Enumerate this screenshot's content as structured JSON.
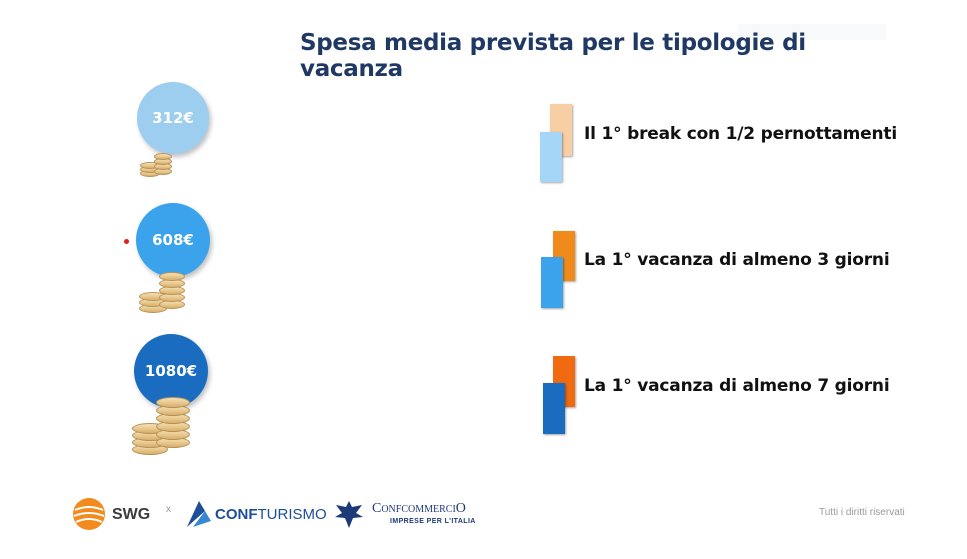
{
  "title": "Spesa media prevista per le tipologie di vacanza",
  "items": [
    {
      "amount": "312€",
      "label": "Il 1° break con 1/2 pernottamenti",
      "color": "#9dcef0",
      "accent": "#f8cfa5"
    },
    {
      "amount": "608€",
      "label": "La 1° vacanza di almeno 3 giorni",
      "color": "#3aa3ec",
      "accent": "#f08a1a"
    },
    {
      "amount": "1080€",
      "label": "La 1° vacanza di almeno 7 giorni",
      "color": "#1a6cc0",
      "accent": "#ef6a10"
    }
  ],
  "footer": {
    "swg": "SWG",
    "separator": "x",
    "confturismo_a": "CONF",
    "confturismo_b": "TURISMO",
    "confcommercio": "ConfcommerciO",
    "confcommercio_sub": "IMPRESE PER L'ITALIA",
    "rights": "Tutti i diritti riservati"
  }
}
